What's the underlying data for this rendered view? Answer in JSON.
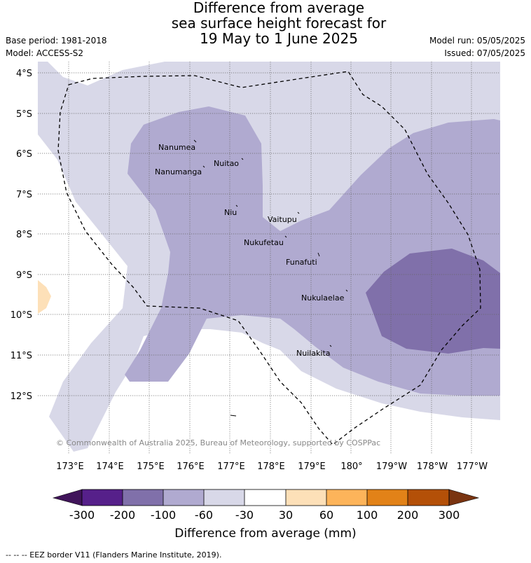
{
  "header": {
    "title_lines": [
      "Difference from average",
      "sea surface height forecast for",
      "19 May to 1 June 2025"
    ],
    "base_period": "Base period: 1981-2018",
    "model": "Model: ACCESS-S2",
    "model_run": "Model run: 05/05/2025",
    "issued": "Issued: 07/05/2025"
  },
  "map": {
    "lat_labels": [
      "4°S",
      "5°S",
      "6°S",
      "7°S",
      "8°S",
      "9°S",
      "10°S",
      "11°S",
      "12°S"
    ],
    "lon_labels": [
      "173°E",
      "174°E",
      "175°E",
      "176°E",
      "177°E",
      "178°E",
      "179°E",
      "180°",
      "179°W",
      "178°W",
      "177°W"
    ],
    "places": [
      "Nanumea",
      "Nuitao",
      "Nanumanga",
      "Niu",
      "Vaitupu",
      "Nukufetau",
      "Funafuti",
      "Nukulaelae",
      "Nuilakita"
    ],
    "copyright": "© Commonwealth of Australia 2025, Bureau of Meteorology, supported by COSPPac",
    "fill_colors": {
      "minus_60_to_minus_30": "#d8d8e8",
      "minus_100_to_minus_60": "#b0aad0",
      "minus_200_to_minus_100": "#8070aa",
      "plus_30_to_60": "#fde0b8"
    }
  },
  "colorbar": {
    "tick_labels": [
      "-300",
      "-200",
      "-100",
      "-60",
      "-30",
      "30",
      "60",
      "100",
      "200",
      "300"
    ],
    "colors": [
      "#40145a",
      "#56208a",
      "#8070aa",
      "#b0aad0",
      "#d8d8e8",
      "#ffffff",
      "#fde0b8",
      "#fdb45a",
      "#e28218",
      "#b45008",
      "#7a3410"
    ],
    "title": "Difference from average (mm)"
  },
  "footer": {
    "legend": "-- -- -- EEZ border V11 (Flanders Marine Institute, 2019)."
  }
}
